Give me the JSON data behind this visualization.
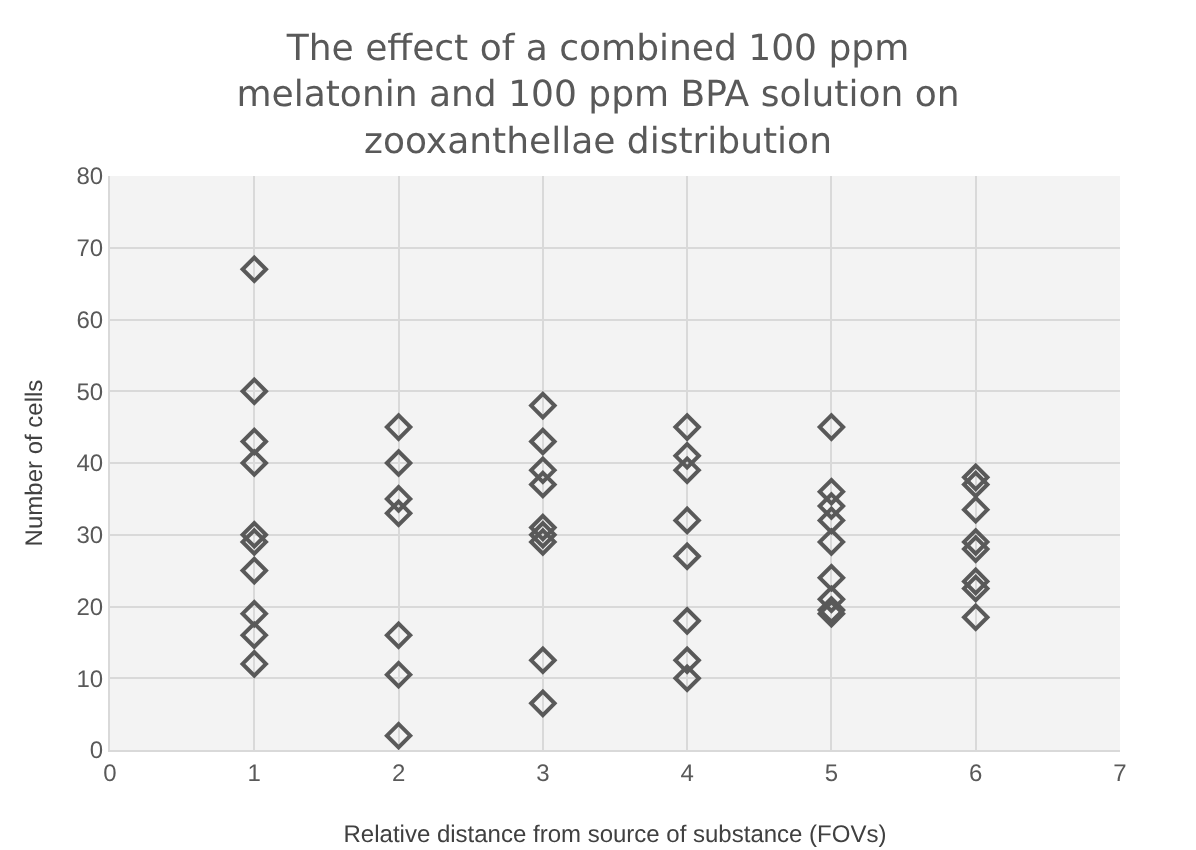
{
  "chart_data": {
    "type": "scatter",
    "title": "The effect of a combined 100 ppm melatonin and 100 ppm BPA solution on zooxanthellae distribution",
    "xlabel": "Relative distance from source of substance (FOVs)",
    "ylabel": "Number of cells",
    "x": [
      1,
      1,
      1,
      1,
      1,
      1,
      1,
      1,
      1,
      1,
      2,
      2,
      2,
      2,
      2,
      2,
      2,
      3,
      3,
      3,
      3,
      3,
      3,
      3,
      3,
      3,
      4,
      4,
      4,
      4,
      4,
      4,
      4,
      4,
      5,
      5,
      5,
      5,
      5,
      5,
      5,
      5,
      5,
      6,
      6,
      6,
      6,
      6,
      6,
      6,
      6
    ],
    "values": [
      67,
      50,
      43,
      40,
      30,
      29,
      25,
      19,
      16,
      12,
      45,
      40,
      35,
      33,
      16,
      10.5,
      2,
      48,
      43,
      39,
      37,
      31,
      30,
      29,
      12.5,
      6.5,
      45,
      41,
      39,
      32,
      27,
      18,
      12.5,
      10,
      45,
      36,
      34,
      32,
      29,
      24,
      21,
      19.5,
      19,
      38,
      37,
      33.5,
      29,
      28,
      23.5,
      22.5,
      18.5
    ],
    "color": "#595959",
    "marker": "diamond",
    "xlim": [
      0,
      7
    ],
    "xticks": [
      0,
      1,
      2,
      3,
      4,
      5,
      6,
      7
    ],
    "ylim": [
      0,
      80
    ],
    "yticks": [
      0,
      10,
      20,
      30,
      40,
      50,
      60,
      70,
      80
    ],
    "grid": true,
    "legend": false
  }
}
